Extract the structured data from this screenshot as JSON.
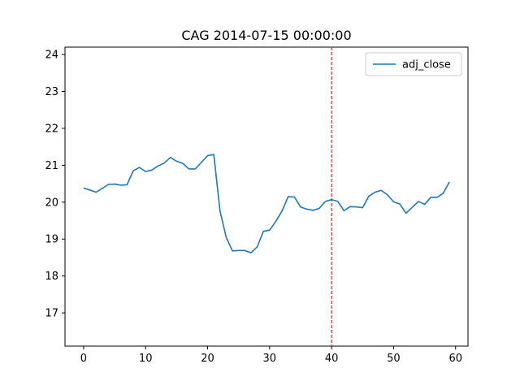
{
  "chart_data": {
    "type": "line",
    "title": "CAG 2014-07-15 00:00:00",
    "xlabel": "",
    "ylabel": "",
    "xlim": [
      -3,
      62
    ],
    "ylim": [
      16.1,
      24.2
    ],
    "xticks": [
      0,
      10,
      20,
      30,
      40,
      50,
      60
    ],
    "yticks": [
      17,
      18,
      19,
      20,
      21,
      22,
      23,
      24
    ],
    "grid": false,
    "legend_position": "top-right",
    "vline": {
      "x": 40,
      "color": "#d62728",
      "style": "dashed"
    },
    "series": [
      {
        "name": "adj_close",
        "color": "#1f77b4",
        "x": [
          0,
          1,
          2,
          3,
          4,
          5,
          6,
          7,
          8,
          9,
          10,
          11,
          12,
          13,
          14,
          15,
          16,
          17,
          18,
          19,
          20,
          21,
          22,
          23,
          24,
          25,
          26,
          27,
          28,
          29,
          30,
          31,
          32,
          33,
          34,
          35,
          36,
          37,
          38,
          39,
          40,
          41,
          42,
          43,
          44,
          45,
          46,
          47,
          48,
          49,
          50,
          51,
          52,
          53,
          54,
          55,
          56,
          57,
          58,
          59
        ],
        "values": [
          20.38,
          20.33,
          20.27,
          20.37,
          20.48,
          20.49,
          20.46,
          20.47,
          20.85,
          20.94,
          20.83,
          20.87,
          20.98,
          21.06,
          21.21,
          21.11,
          21.05,
          20.9,
          20.9,
          21.08,
          21.26,
          21.29,
          19.76,
          19.05,
          18.68,
          18.69,
          18.69,
          18.63,
          18.79,
          19.21,
          19.24,
          19.48,
          19.76,
          20.15,
          20.14,
          19.87,
          19.81,
          19.78,
          19.83,
          20.02,
          20.07,
          20.02,
          19.77,
          19.88,
          19.87,
          19.85,
          20.16,
          20.27,
          20.32,
          20.2,
          20.01,
          19.95,
          19.7,
          19.86,
          20.02,
          19.94,
          20.13,
          20.13,
          20.24,
          20.55
        ]
      }
    ]
  }
}
